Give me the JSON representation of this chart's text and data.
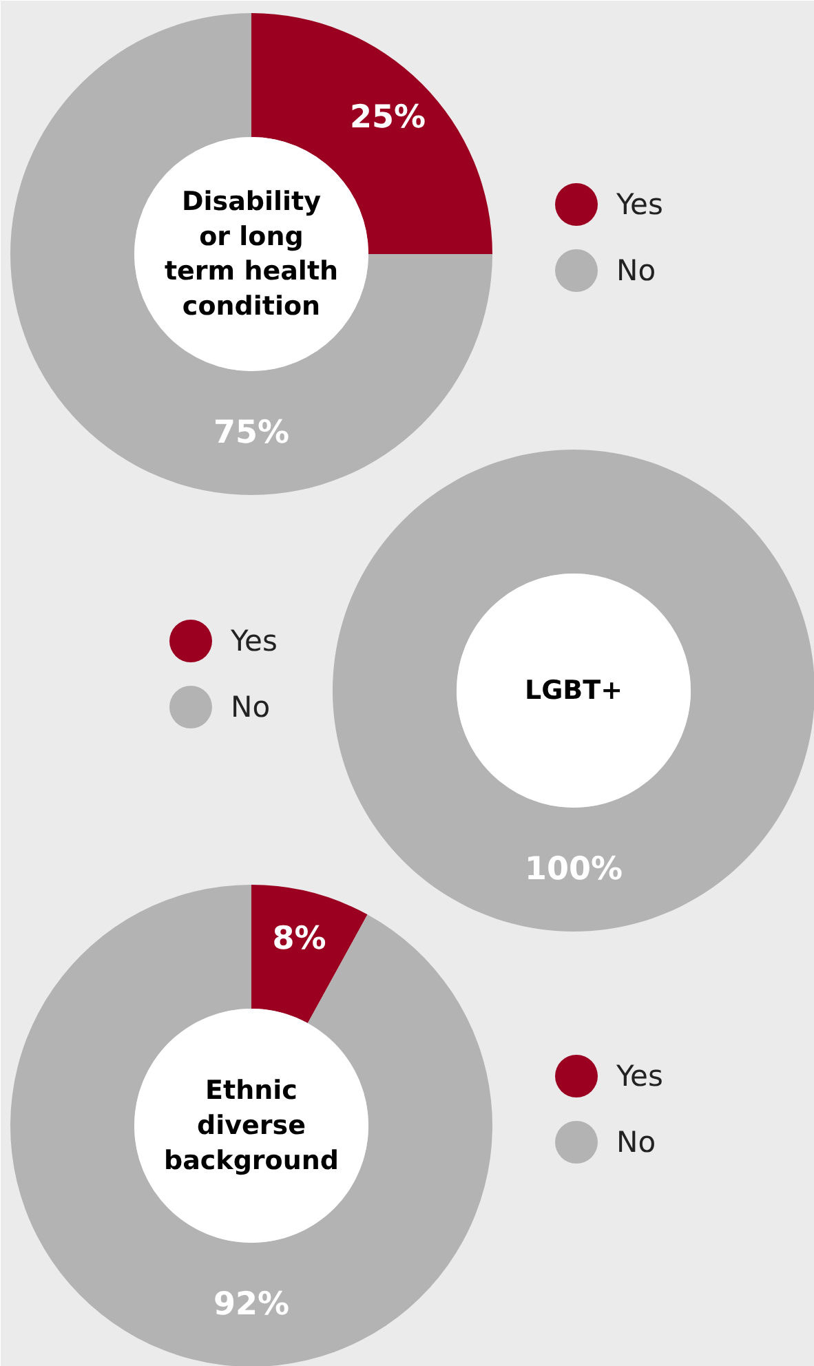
{
  "chart_data": [
    {
      "type": "donut",
      "title": "Disability or long term health condition",
      "categories": [
        "Yes",
        "No"
      ],
      "values": [
        25,
        75
      ],
      "colors": [
        "#9b0020",
        "#b3b3b3"
      ],
      "value_labels": [
        "25%",
        "75%"
      ],
      "legend": "right"
    },
    {
      "type": "donut",
      "title": "LGBT+",
      "categories": [
        "Yes",
        "No"
      ],
      "values": [
        0,
        100
      ],
      "colors": [
        "#9b0020",
        "#b3b3b3"
      ],
      "value_labels": [
        null,
        "100%"
      ],
      "legend": "left"
    },
    {
      "type": "donut",
      "title": "Ethnic diverse background",
      "categories": [
        "Yes",
        "No"
      ],
      "values": [
        8,
        92
      ],
      "colors": [
        "#9b0020",
        "#b3b3b3"
      ],
      "value_labels": [
        "8%",
        "92%"
      ],
      "legend": "right"
    }
  ]
}
